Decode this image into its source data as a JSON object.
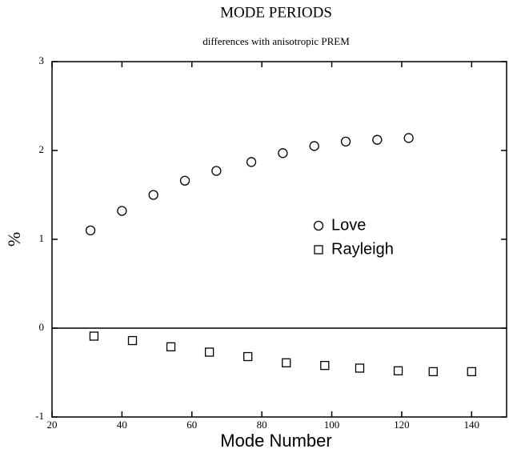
{
  "chart_data": {
    "type": "scatter",
    "title": "MODE PERIODS",
    "subtitle": "differences with anisotropic PREM",
    "x_label": "Mode Number",
    "y_label": "%",
    "series": [
      {
        "name": "Love",
        "color": "#000000",
        "marker": "circle",
        "x": [
          31,
          40,
          49,
          58,
          67,
          77,
          86,
          95,
          104,
          113,
          122
        ],
        "values": [
          1.1,
          1.32,
          1.5,
          1.66,
          1.77,
          1.87,
          1.97,
          2.05,
          2.1,
          2.12,
          2.14
        ]
      },
      {
        "name": "Rayleigh",
        "color": "#000000",
        "marker": "square",
        "x": [
          32,
          43,
          54,
          65,
          76,
          87,
          98,
          108,
          119,
          129,
          140
        ],
        "values": [
          -0.09,
          -0.14,
          -0.21,
          -0.27,
          -0.32,
          -0.39,
          -0.42,
          -0.45,
          -0.48,
          -0.49,
          -0.49
        ]
      }
    ],
    "xlim": [
      20,
      150
    ],
    "xticks": [
      20,
      40,
      60,
      80,
      100,
      120,
      140
    ],
    "ylim": [
      -1,
      3
    ],
    "yticks": [
      -1,
      0,
      1,
      2,
      3
    ],
    "zero_line": true,
    "grid": false,
    "legend": "center-right"
  }
}
